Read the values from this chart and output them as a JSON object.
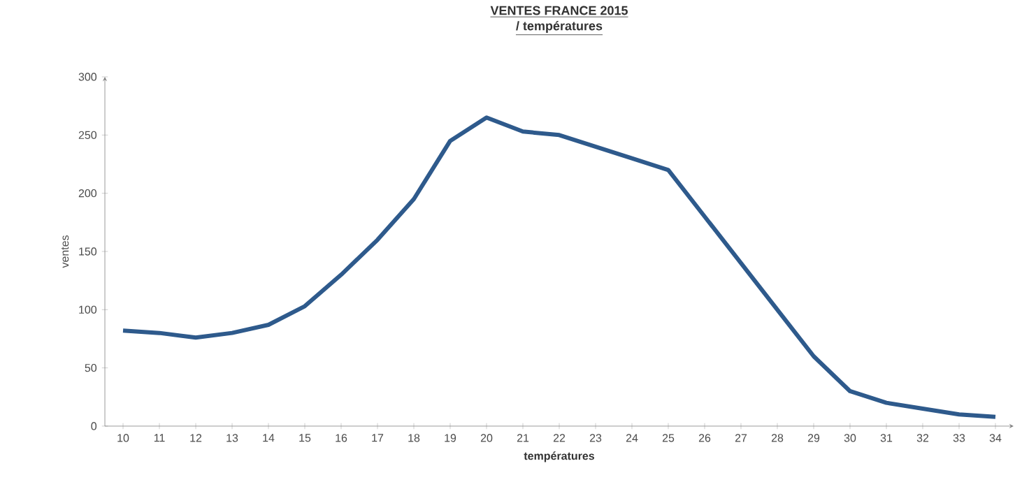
{
  "chart_data": {
    "type": "line",
    "title": "VENTES FRANCE 2015",
    "subtitle": "/ températures",
    "xlabel": "températures",
    "ylabel": "ventes",
    "categories": [
      "10",
      "11",
      "12",
      "13",
      "14",
      "15",
      "16",
      "17",
      "18",
      "19",
      "20",
      "21",
      "22",
      "23",
      "24",
      "25",
      "26",
      "27",
      "28",
      "29",
      "30",
      "31",
      "32",
      "33",
      "34"
    ],
    "series": [
      {
        "color": "#2e5a8c",
        "values": [
          82,
          80,
          76,
          80,
          87,
          103,
          130,
          160,
          195,
          245,
          265,
          253,
          250,
          240,
          230,
          220,
          180,
          140,
          100,
          60,
          30,
          20,
          15,
          10,
          8
        ]
      }
    ],
    "ylim": [
      0,
      300
    ],
    "yticks": [
      0,
      50,
      100,
      150,
      200,
      250,
      300
    ],
    "grid": false,
    "marker": "none",
    "line_style": "solid"
  }
}
